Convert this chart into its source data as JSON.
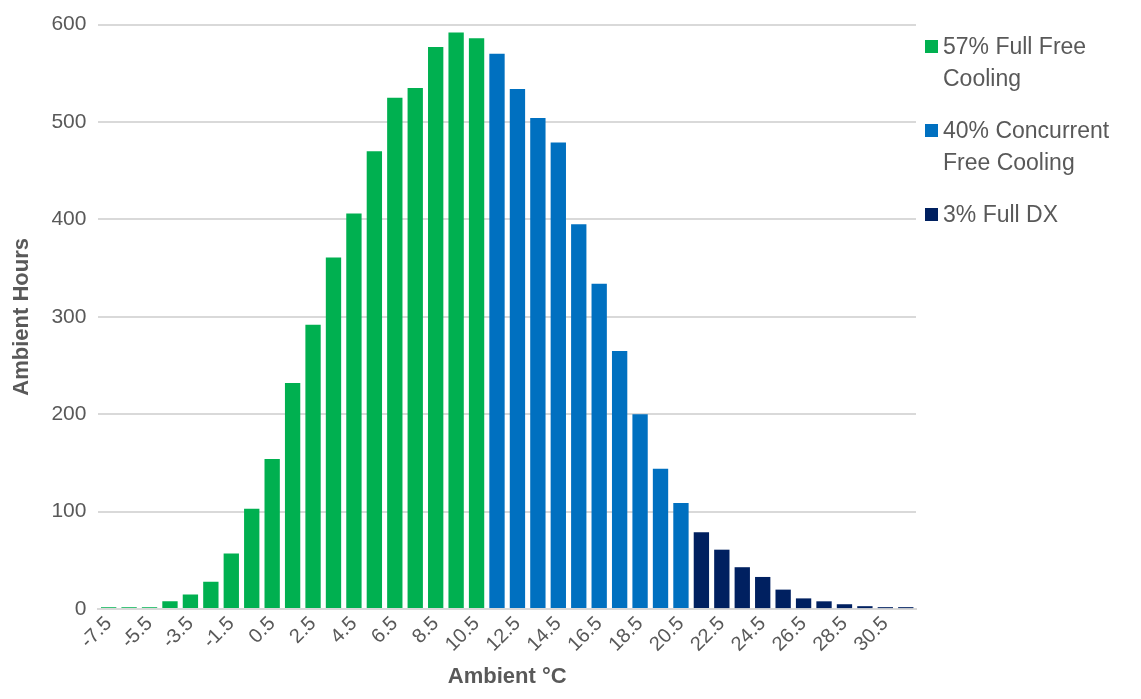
{
  "chart_data": {
    "type": "bar",
    "xlabel": "Ambient °C",
    "ylabel": "Ambient Hours",
    "categories": [
      "-7.5",
      null,
      "-5.5",
      null,
      "-3.5",
      null,
      "-1.5",
      null,
      "0.5",
      null,
      "2.5",
      null,
      "4.5",
      null,
      "6.5",
      null,
      "8.5",
      null,
      "10.5",
      null,
      "12.5",
      null,
      "14.5",
      null,
      "16.5",
      null,
      "18.5",
      null,
      "20.5",
      null,
      "22.5",
      null,
      "24.5",
      null,
      "26.5",
      null,
      "28.5",
      null,
      "30.5",
      null
    ],
    "series": [
      {
        "name": "57% Full Free Cooling",
        "color": "#00b050",
        "values": [
          2,
          2,
          2,
          8,
          15,
          28,
          57,
          103,
          154,
          232,
          292,
          361,
          406,
          470,
          525,
          535,
          577,
          592,
          586,
          null,
          null,
          null,
          null,
          null,
          null,
          null,
          null,
          null,
          null,
          null,
          null,
          null,
          null,
          null,
          null,
          null,
          null,
          null,
          null,
          null
        ]
      },
      {
        "name": "40% Concurrent Free Cooling",
        "color": "#0070c0",
        "values": [
          null,
          null,
          null,
          null,
          null,
          null,
          null,
          null,
          null,
          null,
          null,
          null,
          null,
          null,
          null,
          null,
          null,
          null,
          null,
          570,
          534,
          504,
          479,
          395,
          334,
          265,
          200,
          144,
          109,
          null,
          null,
          null,
          null,
          null,
          null,
          null,
          null,
          null,
          null,
          null
        ]
      },
      {
        "name": "3% Full DX",
        "color": "#002060",
        "values": [
          null,
          null,
          null,
          null,
          null,
          null,
          null,
          null,
          null,
          null,
          null,
          null,
          null,
          null,
          null,
          null,
          null,
          null,
          null,
          null,
          null,
          null,
          null,
          null,
          null,
          null,
          null,
          null,
          null,
          79,
          61,
          43,
          33,
          20,
          11,
          8,
          5,
          3,
          2,
          2
        ]
      }
    ],
    "ylim": [
      0,
      600
    ],
    "yticks": [
      0,
      100,
      200,
      300,
      400,
      500,
      600
    ],
    "grid": "y",
    "legend": "right"
  }
}
